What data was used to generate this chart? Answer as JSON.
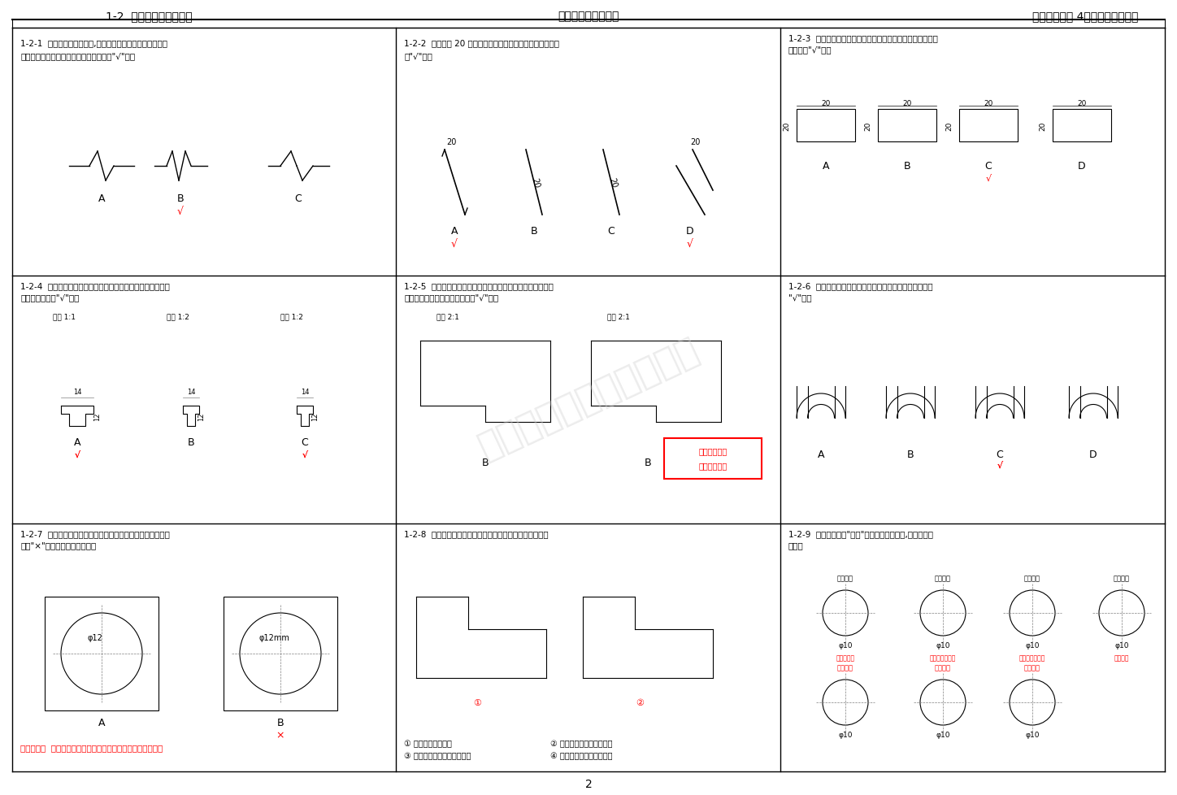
{
  "page_title_left": "1-2  尺寸注法练习（一）",
  "page_title_center": "《习题答案》第一章",
  "page_title_right": "（机工高职多 4）机械制图习题集",
  "page_number": "2",
  "bg_color": "#ffffff",
  "border_color": "#000000",
  "text_color": "#000000",
  "grid_color": "#000000",
  "watermark_color": "#c0c0c0",
  "cells": [
    {
      "id": "1-2-1",
      "row": 0,
      "col": 0
    },
    {
      "id": "1-2-2",
      "row": 0,
      "col": 1
    },
    {
      "id": "1-2-3",
      "row": 0,
      "col": 2
    },
    {
      "id": "1-2-4",
      "row": 1,
      "col": 0
    },
    {
      "id": "1-2-5",
      "row": 1,
      "col": 1
    },
    {
      "id": "1-2-6",
      "row": 1,
      "col": 2
    },
    {
      "id": "1-2-7",
      "row": 2,
      "col": 0
    },
    {
      "id": "1-2-8",
      "row": 2,
      "col": 1
    },
    {
      "id": "1-2-9",
      "row": 2,
      "col": 2
    }
  ],
  "font_size_header": 9,
  "font_size_body": 8,
  "font_size_label": 7,
  "font_size_small": 6,
  "font_size_title": 10
}
